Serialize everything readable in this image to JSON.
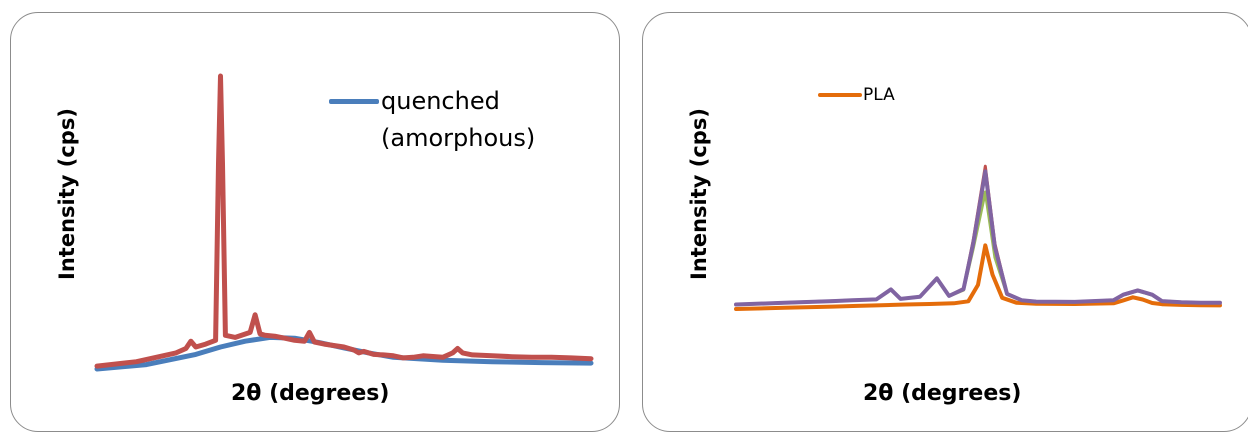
{
  "chart_data": [
    {
      "type": "line",
      "xlabel": "2θ (degrees)",
      "ylabel": "Intensity (cps)",
      "x_range": [
        0,
        100
      ],
      "y_range": [
        0,
        100
      ],
      "legend": {
        "position": "top-right",
        "entries": [
          "quenched",
          "(amorphous)"
        ]
      },
      "series": [
        {
          "name": "quenched (amorphous)",
          "color": "#4a7ebb",
          "width": 5,
          "x": [
            0,
            10,
            20,
            25,
            30,
            35,
            40,
            45,
            50,
            55,
            60,
            70,
            80,
            90,
            100
          ],
          "y": [
            0.0,
            1.5,
            5.0,
            7.5,
            9.5,
            10.8,
            10.5,
            9.0,
            7.2,
            5.5,
            4.0,
            3.0,
            2.5,
            2.2,
            2.0
          ]
        },
        {
          "name": "",
          "color": "#c0504d",
          "width": 5,
          "x": [
            0,
            8,
            16,
            18,
            19,
            20,
            22,
            24,
            24.6,
            25,
            25.4,
            26,
            28,
            31,
            32,
            33,
            34,
            36,
            38,
            40,
            42,
            43,
            44,
            46,
            50,
            52,
            53,
            54,
            56,
            58,
            60,
            62,
            64,
            66,
            70,
            72,
            73,
            74,
            76,
            80,
            84,
            88,
            92,
            96,
            100
          ],
          "y": [
            1.0,
            2.5,
            5.5,
            7.0,
            9.5,
            7.5,
            8.5,
            9.8,
            70,
            100,
            70,
            11.5,
            10.8,
            12.5,
            18.5,
            12.0,
            11.5,
            11.2,
            10.5,
            9.8,
            9.5,
            12.5,
            9.2,
            8.5,
            7.5,
            6.5,
            5.5,
            6.0,
            5.0,
            4.8,
            4.5,
            3.8,
            4.0,
            4.5,
            4.0,
            5.5,
            7.0,
            5.5,
            4.8,
            4.5,
            4.2,
            4.0,
            4.0,
            3.8,
            3.5
          ]
        }
      ]
    },
    {
      "type": "line",
      "xlabel": "2θ (degrees)",
      "ylabel": "Intensity (cps)",
      "x_range": [
        0,
        100
      ],
      "y_range": [
        0,
        100
      ],
      "legend": {
        "position": "top-left",
        "entries": [
          "PLA"
        ]
      },
      "series": [
        {
          "name": "PLA",
          "color": "#e46c0a",
          "width": 4,
          "x": [
            0,
            10,
            20,
            25,
            30,
            35,
            40,
            45,
            48,
            50,
            51.5,
            53,
            55,
            58,
            62,
            70,
            78,
            80,
            82,
            84,
            86,
            88,
            92,
            96,
            100
          ],
          "y": [
            0.0,
            0.7,
            1.4,
            1.8,
            2.2,
            2.6,
            2.9,
            3.3,
            4.5,
            14,
            37,
            20,
            6.5,
            3.6,
            3.1,
            2.9,
            3.3,
            5.0,
            6.8,
            5.5,
            3.5,
            2.8,
            2.4,
            2.2,
            2.1
          ]
        },
        {
          "name": "",
          "color": "#9bbb59",
          "width": 3,
          "x": [
            0,
            10,
            20,
            24,
            29,
            32,
            34,
            38,
            41.5,
            44,
            47,
            49,
            51.5,
            53.5,
            56,
            59,
            62,
            70,
            78,
            80,
            83,
            86,
            88,
            92,
            96,
            100
          ],
          "y": [
            2.5,
            3.5,
            4.5,
            5.0,
            5.5,
            11.2,
            5.8,
            7.0,
            17.5,
            7.5,
            11,
            35,
            68,
            30,
            8.5,
            5.0,
            4.2,
            4.0,
            5.0,
            8.0,
            10.5,
            8.0,
            4.5,
            3.8,
            3.5,
            3.5
          ]
        },
        {
          "name": "",
          "color": "#c0504d",
          "width": 3,
          "x": [
            0,
            10,
            20,
            24,
            29,
            32,
            34,
            38,
            41.5,
            44,
            47,
            49,
            51.5,
            53.5,
            56,
            59,
            62,
            70,
            78,
            80,
            83,
            86,
            88,
            92,
            96,
            100
          ],
          "y": [
            2.7,
            3.7,
            4.7,
            5.2,
            5.7,
            11.5,
            6.0,
            7.2,
            18.0,
            7.7,
            12,
            40,
            83,
            38,
            9.0,
            5.2,
            4.4,
            4.2,
            5.2,
            8.5,
            11.0,
            8.5,
            4.7,
            4.0,
            3.7,
            3.7
          ]
        },
        {
          "name": "",
          "color": "#8064a2",
          "width": 4,
          "x": [
            0,
            10,
            20,
            24,
            29,
            32,
            34,
            38,
            41.5,
            44,
            47,
            49,
            51.5,
            53.5,
            56,
            59,
            62,
            70,
            78,
            80,
            83,
            86,
            88,
            92,
            96,
            100
          ],
          "y": [
            2.6,
            3.6,
            4.6,
            5.1,
            5.6,
            11.4,
            5.9,
            7.1,
            17.8,
            7.6,
            11.5,
            38,
            80,
            36,
            8.8,
            5.1,
            4.3,
            4.1,
            5.1,
            8.3,
            10.8,
            8.3,
            4.6,
            3.9,
            3.6,
            3.6
          ]
        }
      ]
    }
  ]
}
